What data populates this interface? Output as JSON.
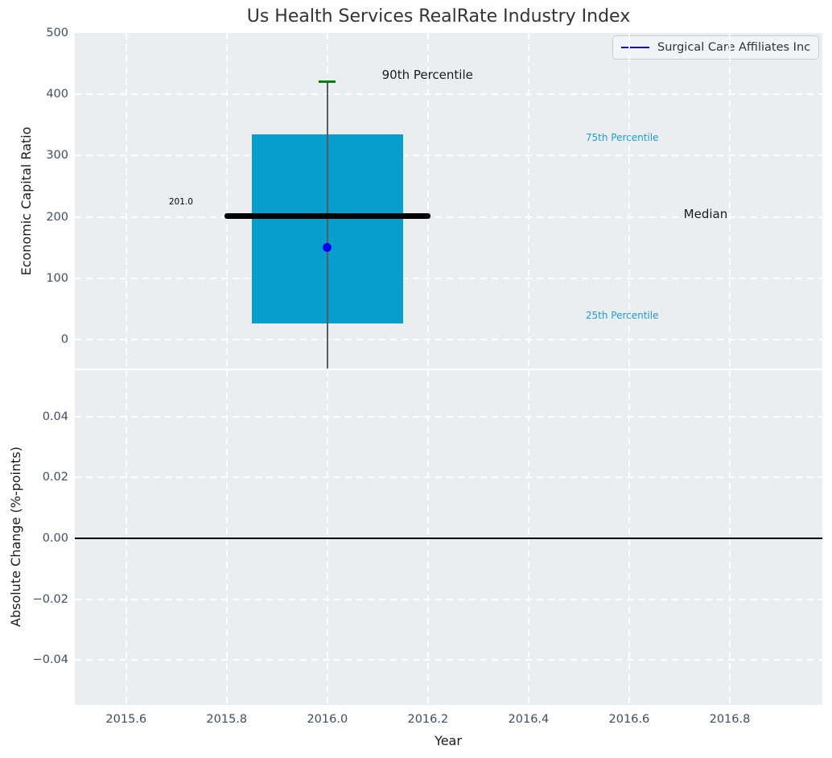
{
  "figure": {
    "title": "Us Health Services RealRate Industry Index"
  },
  "legend": {
    "entries": [
      {
        "label": "Surgical Care Affiliates Inc",
        "color": "#0000dd"
      }
    ]
  },
  "colors": {
    "figure_bg": "#ffffff",
    "axes_bg": "#ebeef1",
    "grid": "#ffffff",
    "tick_label": "#3d4c63",
    "text": "#1a1a1a",
    "title": "#333333",
    "box_fill": "#089ecd",
    "median_line": "#000000",
    "whisker": "#5a5a5a",
    "p90_cap": "#008000",
    "company_marker": "#0202f2",
    "percentile_label": "#1c9cd4",
    "zero_line": "#000000"
  },
  "x_axis": {
    "label": "Year",
    "xlim": [
      2015.498,
      2016.984
    ],
    "xticks": [
      {
        "value": 2015.6,
        "label": "2015.6"
      },
      {
        "value": 2015.8,
        "label": "2015.8"
      },
      {
        "value": 2016.0,
        "label": "2016.0"
      },
      {
        "value": 2016.2,
        "label": "2016.2"
      },
      {
        "value": 2016.4,
        "label": "2016.4"
      },
      {
        "value": 2016.6,
        "label": "2016.6"
      },
      {
        "value": 2016.8,
        "label": "2016.8"
      }
    ]
  },
  "chart_data": [
    {
      "type": "boxplot",
      "panel": "top",
      "title": "Us Health Services RealRate Industry Index",
      "ylabel": "Economic Capital Ratio",
      "ylim": [
        -47,
        500
      ],
      "yticks": [
        {
          "value": 0,
          "label": "0"
        },
        {
          "value": 100,
          "label": "100"
        },
        {
          "value": 200,
          "label": "200"
        },
        {
          "value": 300,
          "label": "300"
        },
        {
          "value": 400,
          "label": "400"
        },
        {
          "value": 500,
          "label": "500"
        }
      ],
      "grid": true,
      "legend_position": "upper right",
      "box": {
        "x_center": 2016.0,
        "box_left": 2015.85,
        "box_right": 2016.15,
        "q1": 27,
        "median": 201.0,
        "q3": 335,
        "p90": 420,
        "median_left": 2015.795,
        "median_right": 2016.205,
        "whisker_low_clipped_below_axis": true
      },
      "series": [
        {
          "name": "Surgical Care Affiliates Inc",
          "x": 2016.0,
          "y": 150,
          "marker": "circle"
        }
      ],
      "annotations": [
        {
          "id": "median-value",
          "text": "201.0",
          "x": 2015.709,
          "y": 222,
          "size": 10.5,
          "color": "#000000"
        },
        {
          "id": "p90-label",
          "text": "90th Percentile",
          "x": 2016.199,
          "y": 430,
          "size": 15,
          "color": "#1a1a1a"
        },
        {
          "id": "p75-label",
          "text": "75th Percentile",
          "x": 2016.586,
          "y": 327,
          "size": 12,
          "color": "#1c9cd4"
        },
        {
          "id": "median-label",
          "text": "Median",
          "x": 2016.752,
          "y": 202,
          "size": 15,
          "color": "#1a1a1a"
        },
        {
          "id": "p25-label",
          "text": "25th Percentile",
          "x": 2016.586,
          "y": 38,
          "size": 12,
          "color": "#1c9cd4"
        }
      ]
    },
    {
      "type": "line",
      "panel": "bottom",
      "ylabel": "Absolute Change (%-points)",
      "ylim": [
        -0.0547,
        0.0553
      ],
      "yticks": [
        {
          "value": 0.04,
          "label": "0.04"
        },
        {
          "value": 0.02,
          "label": "0.02"
        },
        {
          "value": 0.0,
          "label": "0.00"
        },
        {
          "value": -0.02,
          "label": "−0.02"
        },
        {
          "value": -0.04,
          "label": "−0.04"
        }
      ],
      "grid": true,
      "zero_line": 0.0,
      "series": []
    }
  ]
}
